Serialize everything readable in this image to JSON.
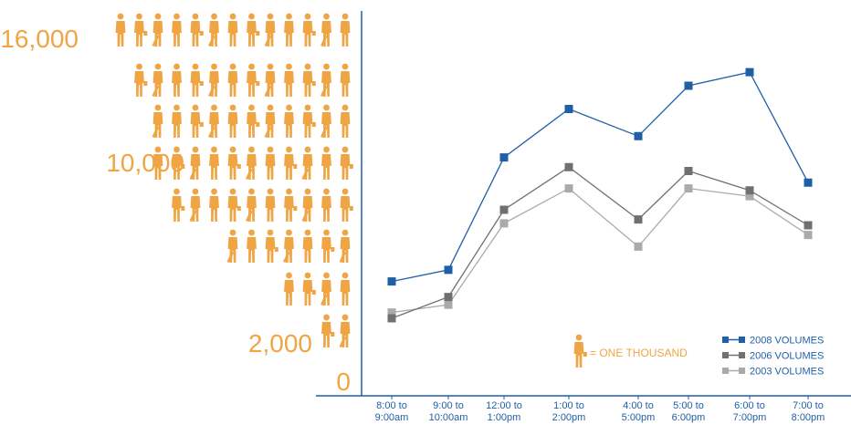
{
  "chart_data": {
    "type": "line",
    "x": [
      "8:00 to 9:00am",
      "9:00 to 10:00am",
      "12:00 to 1:00pm",
      "1:00 to 2:00pm",
      "4:00 to 5:00pm",
      "5:00 to 6:00pm",
      "6:00 to 7:00pm",
      "7:00 to 8:00pm"
    ],
    "x_lines": [
      [
        "8:00 to",
        "9:00am"
      ],
      [
        "9:00 to",
        "10:00am"
      ],
      [
        "12:00 to",
        "1:00pm"
      ],
      [
        "1:00 to",
        "2:00pm"
      ],
      [
        "4:00 to",
        "5:00pm"
      ],
      [
        "5:00 to",
        "6:00pm"
      ],
      [
        "6:00 to",
        "7:00pm"
      ],
      [
        "7:00 to",
        "8:00pm"
      ]
    ],
    "series": [
      {
        "name": "2008 VOLUMES",
        "color": "#1f5fa6",
        "values": [
          5900,
          6500,
          12300,
          14800,
          13400,
          16000,
          16700,
          11000
        ]
      },
      {
        "name": "2006 VOLUMES",
        "color": "#707070",
        "values": [
          4000,
          5100,
          9600,
          11800,
          9100,
          11600,
          10600,
          8800
        ]
      },
      {
        "name": "2003 VOLUMES",
        "color": "#aaaaaa",
        "values": [
          4300,
          4700,
          8900,
          10700,
          7700,
          10700,
          10300,
          8300
        ]
      }
    ],
    "y_scale_labels": [
      {
        "value": 16000,
        "text": "16,000"
      },
      {
        "value": 10000,
        "text": "10,000"
      },
      {
        "value": 2000,
        "text": "2,000"
      },
      {
        "value": 0,
        "text": "0"
      }
    ],
    "pictogram_rows": [
      13,
      12,
      11,
      11,
      10,
      7,
      4,
      2
    ],
    "note": "= ONE THOUSAND",
    "icon": "person-silhouette-icon",
    "icon_color": "#f0a545",
    "axis_color": "#1f5fa6",
    "ylim": [
      0,
      18000
    ],
    "legend_position": "bottom-right",
    "grid": false
  }
}
